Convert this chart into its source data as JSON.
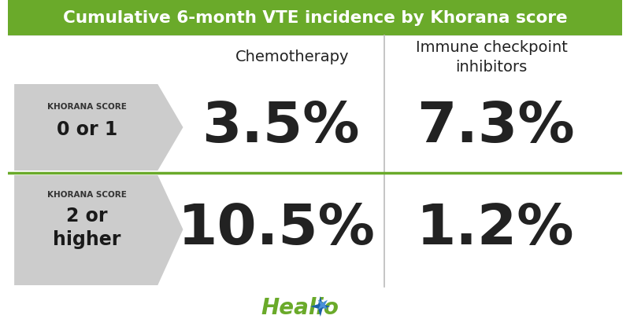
{
  "title": "Cumulative 6-month VTE incidence by Khorana score",
  "title_bg_color": "#6aaa2a",
  "title_text_color": "#ffffff",
  "bg_color": "#ffffff",
  "col1_header": "Chemotherapy",
  "col2_header": "Immune checkpoint\ninhibitors",
  "header_text_color": "#222222",
  "row1_label_line1": "KHORANA SCORE",
  "row1_label_line2": "0 or 1",
  "row2_label_line1": "KHORANA SCORE",
  "row2_label_line2": "2 or\nhigher",
  "label_bg_color": "#cccccc",
  "row1_col1_value": "3.5%",
  "row1_col2_value": "7.3%",
  "row2_col1_value": "10.5%",
  "row2_col2_value": "1.2%",
  "value_text_color": "#222222",
  "divider_color": "#6aaa2a",
  "vertical_divider_color": "#bbbbbb",
  "healio_text_color": "#6aaa2a",
  "healio_star_color": "#1a5fa8",
  "healio_star_color2": "#4a90d9"
}
